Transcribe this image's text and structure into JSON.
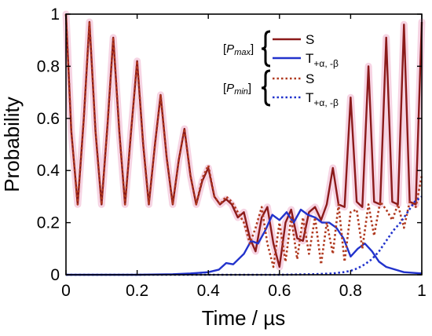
{
  "chart_data": {
    "type": "line",
    "title": "",
    "xlabel": "Time / µs",
    "ylabel": "Probability",
    "xlim": [
      0,
      1
    ],
    "ylim": [
      0,
      1
    ],
    "xticks": [
      "0",
      "0.2",
      "0.4",
      "0.6",
      "0.8",
      "1"
    ],
    "yticks": [
      "0",
      "0.2",
      "0.4",
      "0.6",
      "0.8",
      "1"
    ],
    "grid": false,
    "legend_position": "top-right",
    "legend_groups": [
      {
        "label_prefix": "[",
        "label_italic": "P",
        "label_sub": "max",
        "label_suffix": "]"
      },
      {
        "label_prefix": "[",
        "label_italic": "P",
        "label_sub": "min",
        "label_suffix": "]"
      }
    ],
    "series": [
      {
        "name": "S",
        "group": "Pmax",
        "color": "#8b1a1a",
        "style": "solid",
        "x": [
          0,
          0.015,
          0.033,
          0.05,
          0.066,
          0.083,
          0.1,
          0.117,
          0.133,
          0.15,
          0.166,
          0.183,
          0.2,
          0.217,
          0.233,
          0.25,
          0.266,
          0.283,
          0.3,
          0.317,
          0.333,
          0.35,
          0.366,
          0.383,
          0.4,
          0.417,
          0.433,
          0.45,
          0.466,
          0.483,
          0.5,
          0.517,
          0.533,
          0.55,
          0.566,
          0.583,
          0.6,
          0.617,
          0.633,
          0.65,
          0.666,
          0.683,
          0.7,
          0.717,
          0.733,
          0.75,
          0.766,
          0.783,
          0.8,
          0.817,
          0.833,
          0.85,
          0.866,
          0.883,
          0.9,
          0.917,
          0.933,
          0.95,
          0.966,
          0.983,
          1.0
        ],
        "values": [
          1.0,
          0.55,
          0.27,
          0.6,
          0.97,
          0.55,
          0.27,
          0.58,
          0.91,
          0.55,
          0.27,
          0.55,
          0.82,
          0.5,
          0.27,
          0.5,
          0.69,
          0.45,
          0.27,
          0.44,
          0.56,
          0.38,
          0.27,
          0.36,
          0.41,
          0.3,
          0.27,
          0.29,
          0.27,
          0.22,
          0.24,
          0.14,
          0.09,
          0.22,
          0.26,
          0.12,
          0.03,
          0.2,
          0.25,
          0.14,
          0.13,
          0.24,
          0.26,
          0.21,
          0.27,
          0.41,
          0.27,
          0.26,
          0.68,
          0.28,
          0.26,
          0.8,
          0.28,
          0.27,
          0.91,
          0.28,
          0.27,
          0.96,
          0.28,
          0.27,
          0.97
        ]
      },
      {
        "name": "T",
        "name_sub": "+α, -β",
        "group": "Pmax",
        "color": "#2233cc",
        "style": "solid",
        "x": [
          0,
          0.1,
          0.2,
          0.3,
          0.35,
          0.4,
          0.43,
          0.45,
          0.47,
          0.5,
          0.52,
          0.54,
          0.56,
          0.58,
          0.6,
          0.62,
          0.64,
          0.66,
          0.68,
          0.7,
          0.72,
          0.74,
          0.76,
          0.78,
          0.8,
          0.82,
          0.84,
          0.86,
          0.88,
          0.9,
          0.95,
          1.0
        ],
        "values": [
          0,
          0,
          0,
          0.002,
          0.005,
          0.01,
          0.02,
          0.045,
          0.04,
          0.08,
          0.13,
          0.12,
          0.17,
          0.23,
          0.21,
          0.24,
          0.2,
          0.25,
          0.23,
          0.22,
          0.2,
          0.2,
          0.18,
          0.14,
          0.07,
          0.1,
          0.12,
          0.09,
          0.05,
          0.03,
          0.01,
          0.005
        ]
      },
      {
        "name": "S",
        "group": "Pmin",
        "color": "#b03a20",
        "style": "dotted",
        "x": [
          0,
          0.015,
          0.033,
          0.05,
          0.066,
          0.083,
          0.1,
          0.117,
          0.133,
          0.15,
          0.166,
          0.183,
          0.2,
          0.217,
          0.233,
          0.25,
          0.266,
          0.283,
          0.3,
          0.317,
          0.333,
          0.35,
          0.366,
          0.383,
          0.4,
          0.417,
          0.433,
          0.45,
          0.466,
          0.483,
          0.5,
          0.517,
          0.533,
          0.55,
          0.566,
          0.583,
          0.6,
          0.617,
          0.633,
          0.65,
          0.666,
          0.683,
          0.7,
          0.717,
          0.733,
          0.75,
          0.766,
          0.783,
          0.8,
          0.817,
          0.833,
          0.85,
          0.866,
          0.883,
          0.9,
          0.917,
          0.933,
          0.95,
          0.966,
          0.983,
          1.0
        ],
        "values": [
          1.0,
          0.55,
          0.27,
          0.6,
          0.97,
          0.55,
          0.27,
          0.58,
          0.91,
          0.55,
          0.27,
          0.55,
          0.82,
          0.5,
          0.27,
          0.5,
          0.69,
          0.45,
          0.27,
          0.44,
          0.56,
          0.38,
          0.27,
          0.37,
          0.42,
          0.3,
          0.27,
          0.3,
          0.28,
          0.24,
          0.2,
          0.12,
          0.18,
          0.26,
          0.12,
          0.03,
          0.2,
          0.05,
          0.22,
          0.06,
          0.22,
          0.08,
          0.22,
          0.04,
          0.2,
          0.08,
          0.27,
          0.05,
          0.24,
          0.25,
          0.1,
          0.27,
          0.15,
          0.28,
          0.25,
          0.21,
          0.27,
          0.18,
          0.28,
          0.26,
          0.38
        ]
      },
      {
        "name": "T",
        "name_sub": "+α, -β",
        "group": "Pmin",
        "color": "#2233cc",
        "style": "dotted",
        "x": [
          0,
          0.2,
          0.4,
          0.6,
          0.7,
          0.75,
          0.78,
          0.8,
          0.82,
          0.84,
          0.86,
          0.88,
          0.9,
          0.92,
          0.94,
          0.96,
          0.98,
          1.0
        ],
        "values": [
          0,
          0,
          0,
          0,
          0.002,
          0.005,
          0.01,
          0.015,
          0.025,
          0.04,
          0.06,
          0.09,
          0.13,
          0.17,
          0.2,
          0.24,
          0.28,
          0.3
        ]
      }
    ]
  }
}
